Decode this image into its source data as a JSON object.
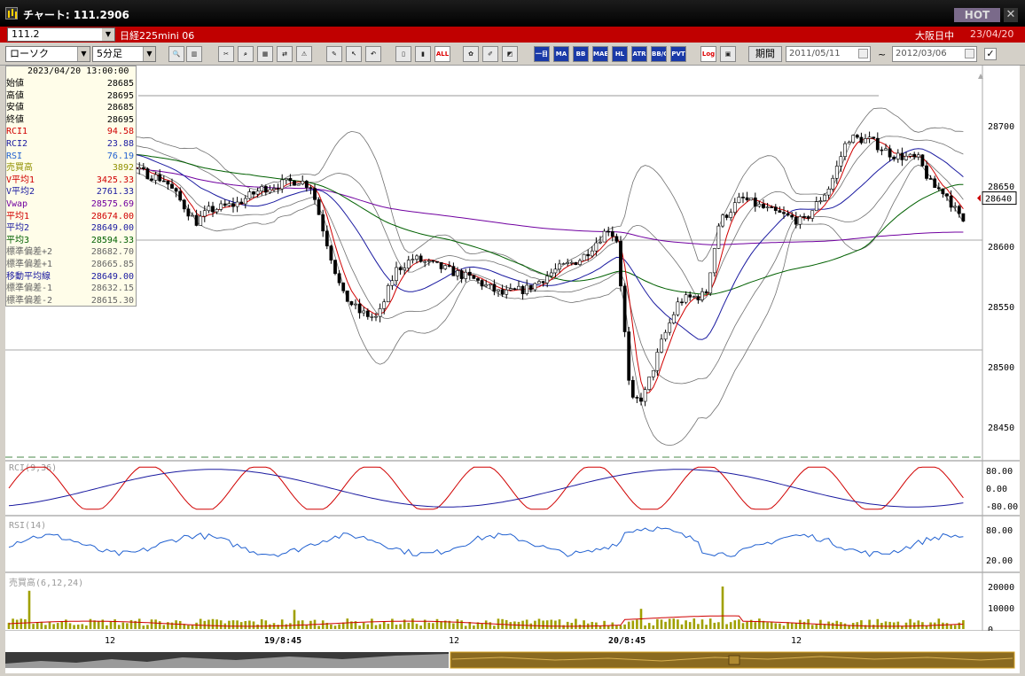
{
  "window": {
    "title": "チャート: 111.2906",
    "hot_label": "HOT",
    "close_glyph": "✕"
  },
  "symbol_bar": {
    "code": "111.2",
    "name": "日経225mini 06",
    "status": "大阪日中",
    "date": "23/04/20"
  },
  "toolbar": {
    "chart_type": "ローソク",
    "interval": "5分足",
    "buttons": [
      {
        "name": "zoom-icon",
        "label": "🔍"
      },
      {
        "name": "columns-icon",
        "label": "▥"
      },
      {
        "name": "scissors-icon",
        "label": "✂"
      },
      {
        "name": "magnifier-icon",
        "label": "⌕"
      },
      {
        "name": "chart-add-icon",
        "label": "▦"
      },
      {
        "name": "swap-icon",
        "label": "⇄"
      },
      {
        "name": "warning-icon",
        "label": "⚠"
      },
      {
        "name": "pen-icon",
        "label": "✎"
      },
      {
        "name": "cursor-icon",
        "label": "↖"
      },
      {
        "name": "undo-icon",
        "label": "↶"
      },
      {
        "name": "candle-icon",
        "label": "▯"
      },
      {
        "name": "bars-icon",
        "label": "▮"
      },
      {
        "name": "all-icon",
        "label": "ALL"
      },
      {
        "name": "palette-icon",
        "label": "✿"
      },
      {
        "name": "brush-icon",
        "label": "✐"
      },
      {
        "name": "color-icon",
        "label": "◩"
      }
    ],
    "indicator_buttons": [
      "一目",
      "MA",
      "BB",
      "MAE",
      "HL",
      "ATR",
      "BB/CD",
      "PVT"
    ],
    "log_label": "Log",
    "period_label": "期間",
    "date_from": "2011/05/11",
    "date_to": "2012/03/06",
    "tilde": "~",
    "check_glyph": "✓"
  },
  "info": {
    "timestamp": "2023/04/20  13:00:00",
    "rows": [
      {
        "label": "始値",
        "value": "28685",
        "color": "#000000"
      },
      {
        "label": "高値",
        "value": "28695",
        "color": "#000000"
      },
      {
        "label": "安値",
        "value": "28685",
        "color": "#000000"
      },
      {
        "label": "終値",
        "value": "28695",
        "color": "#000000"
      },
      {
        "label": "RCI1",
        "value": "94.58",
        "color": "#d00000"
      },
      {
        "label": "RCI2",
        "value": "23.88",
        "color": "#1a1aa0"
      },
      {
        "label": "RSI",
        "value": "76.19",
        "color": "#2060d0"
      },
      {
        "label": "売買高",
        "value": "3892",
        "color": "#909000"
      },
      {
        "label": "V平均1",
        "value": "3425.33",
        "color": "#d00000"
      },
      {
        "label": "V平均2",
        "value": "2761.33",
        "color": "#1a1aa0"
      },
      {
        "label": "Vwap",
        "value": "28575.69",
        "color": "#7000a0"
      },
      {
        "label": "平均1",
        "value": "28674.00",
        "color": "#d00000"
      },
      {
        "label": "平均2",
        "value": "28649.00",
        "color": "#1a1aa0"
      },
      {
        "label": "平均3",
        "value": "28594.33",
        "color": "#006000"
      },
      {
        "label": "標準偏差+2",
        "value": "28682.70",
        "color": "#666666"
      },
      {
        "label": "標準偏差+1",
        "value": "28665.85",
        "color": "#666666"
      },
      {
        "label": "移動平均線",
        "value": "28649.00",
        "color": "#1a1aa0"
      },
      {
        "label": "標準偏差-1",
        "value": "28632.15",
        "color": "#666666"
      },
      {
        "label": "標準偏差-2",
        "value": "28615.30",
        "color": "#666666"
      }
    ]
  },
  "price_axis": {
    "ticks": [
      "28700",
      "28650",
      "28600",
      "28550",
      "28500",
      "28450"
    ],
    "current": "28640"
  },
  "rci_panel": {
    "label": "RCI(9,36)",
    "ticks": [
      "80.00",
      "0.00",
      "-80.00"
    ]
  },
  "rsi_panel": {
    "label": "RSI(14)",
    "ticks": [
      "80.00",
      "20.00"
    ]
  },
  "volume_panel": {
    "label": "売買高(6,12,24)",
    "ticks": [
      "20000",
      "10000",
      "0"
    ]
  },
  "time_axis": {
    "labels": [
      "12",
      "19/8:45",
      "12",
      "20/8:45",
      "12"
    ]
  },
  "colors": {
    "up": "#ffffff",
    "down": "#000000",
    "ma1": "#d00000",
    "ma2": "#1a1aa0",
    "ma3": "#006000",
    "vwap": "#7000a0",
    "band": "#707070",
    "rsi": "#2060d0",
    "volume": "#a0a000"
  }
}
